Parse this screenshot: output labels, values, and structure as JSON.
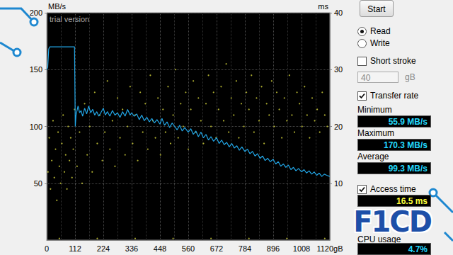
{
  "chart_data": {
    "type": "line",
    "y_label": "MB/s",
    "y2_label": "ms",
    "annotation": "trial version",
    "xlim": [
      0,
      1120
    ],
    "xticks": [
      0,
      112,
      224,
      336,
      448,
      560,
      672,
      784,
      896,
      1008,
      {
        "value": 1120,
        "label": "1120gB"
      }
    ],
    "ylim": [
      0,
      200
    ],
    "yticks": [
      50,
      100,
      150,
      200
    ],
    "y2lim": [
      0,
      40
    ],
    "y2ticks": [
      10,
      20,
      30,
      40
    ],
    "grid": true,
    "series": [
      {
        "type": "line",
        "color": "#22a6e6",
        "x": [
          0,
          4,
          8,
          12,
          30,
          60,
          90,
          110,
          113,
          116,
          124,
          130,
          136,
          142,
          150,
          158,
          166,
          174,
          182,
          190,
          198,
          206,
          214,
          224,
          232,
          240,
          250,
          260,
          270,
          280,
          290,
          300,
          310,
          320,
          330,
          336,
          346,
          356,
          366,
          376,
          386,
          396,
          406,
          416,
          426,
          436,
          448,
          456,
          466,
          476,
          486,
          496,
          506,
          516,
          526,
          536,
          546,
          560,
          570,
          580,
          590,
          600,
          610,
          620,
          630,
          640,
          650,
          660,
          672,
          682,
          692,
          702,
          712,
          722,
          732,
          742,
          752,
          762,
          772,
          784,
          794,
          804,
          814,
          824,
          834,
          844,
          854,
          864,
          874,
          884,
          896,
          906,
          916,
          926,
          936,
          946,
          956,
          966,
          976,
          986,
          996,
          1008,
          1018,
          1028,
          1038,
          1048,
          1058,
          1068,
          1078,
          1088,
          1098,
          1108,
          1120
        ],
        "values": [
          150,
          152,
          168,
          170,
          170,
          170,
          170,
          170,
          100,
          110,
          118,
          112,
          114,
          109,
          116,
          111,
          118,
          112,
          115,
          110,
          113,
          109,
          112,
          116,
          110,
          113,
          109,
          114,
          110,
          112,
          108,
          113,
          109,
          115,
          110,
          112,
          109,
          111,
          106,
          110,
          105,
          108,
          104,
          107,
          103,
          106,
          102,
          107,
          101,
          104,
          99,
          103,
          100,
          97,
          101,
          96,
          99,
          95,
          98,
          93,
          96,
          91,
          95,
          90,
          93,
          88,
          91,
          87,
          90,
          85,
          88,
          84,
          86,
          82,
          85,
          81,
          83,
          79,
          82,
          78,
          80,
          76,
          78,
          74,
          76,
          72,
          74,
          70,
          72,
          69,
          71,
          67,
          69,
          65,
          67,
          64,
          66,
          62,
          64,
          61,
          63,
          60,
          62,
          59,
          61,
          58,
          60,
          57,
          59,
          56,
          58,
          57,
          56
        ]
      },
      {
        "type": "scatter",
        "axis": "y2",
        "color": "#d8d83c",
        "marker": "dot",
        "x": [
          5,
          10,
          15,
          20,
          25,
          30,
          35,
          40,
          45,
          50,
          55,
          60,
          65,
          70,
          75,
          80,
          85,
          90,
          95,
          100,
          105,
          110,
          120,
          130,
          140,
          150,
          160,
          170,
          180,
          190,
          200,
          210,
          220,
          230,
          240,
          250,
          260,
          270,
          280,
          290,
          300,
          310,
          320,
          330,
          340,
          350,
          360,
          370,
          380,
          390,
          400,
          410,
          420,
          430,
          440,
          450,
          460,
          470,
          480,
          490,
          500,
          510,
          520,
          530,
          540,
          550,
          560,
          570,
          580,
          590,
          600,
          610,
          620,
          630,
          640,
          650,
          660,
          670,
          680,
          690,
          700,
          710,
          720,
          730,
          740,
          750,
          760,
          770,
          780,
          790,
          800,
          810,
          820,
          830,
          840,
          850,
          860,
          870,
          880,
          890,
          900,
          910,
          920,
          930,
          940,
          950,
          960,
          970,
          980,
          990,
          1000,
          1010,
          1020,
          1030,
          1040,
          1050,
          1060,
          1070,
          1080,
          1090,
          1100,
          1110,
          50,
          200,
          350,
          500,
          650,
          800,
          950,
          1100
        ],
        "values": [
          12,
          18,
          9,
          14,
          21,
          11,
          16,
          7,
          19,
          13,
          10,
          17,
          22,
          12,
          15,
          9,
          20,
          14,
          18,
          11,
          16,
          23,
          13,
          19,
          10,
          24,
          15,
          20,
          12,
          26,
          17,
          22,
          14,
          19,
          28,
          16,
          21,
          13,
          25,
          18,
          23,
          15,
          20,
          27,
          17,
          22,
          14,
          26,
          19,
          24,
          16,
          29,
          21,
          18,
          25,
          15,
          23,
          19,
          27,
          17,
          22,
          30,
          18,
          24,
          20,
          26,
          16,
          23,
          28,
          19,
          25,
          21,
          17,
          24,
          29,
          20,
          26,
          18,
          23,
          27,
          21,
          31,
          19,
          25,
          22,
          28,
          18,
          24,
          20,
          26,
          23,
          29,
          19,
          25,
          21,
          27,
          17,
          24,
          22,
          28,
          20,
          26,
          23,
          18,
          25,
          21,
          29,
          22,
          19,
          26,
          24,
          20,
          27,
          22,
          18,
          25,
          21,
          23,
          19,
          26,
          22,
          20,
          0.3,
          0.3,
          0.3,
          0.3,
          0.3,
          0.3,
          0.3,
          0.3
        ]
      }
    ]
  },
  "panel": {
    "start_button": "Start",
    "mode": [
      {
        "label": "Read",
        "selected": true
      },
      {
        "label": "Write",
        "selected": false
      }
    ],
    "short_stroke": {
      "label": "Short stroke",
      "checked": false,
      "value": "40",
      "unit": "gB"
    },
    "transfer_rate": {
      "label": "Transfer rate",
      "checked": true,
      "stats": [
        {
          "label": "Minimum",
          "value": "55.9 MB/s"
        },
        {
          "label": "Maximum",
          "value": "170.3 MB/s"
        },
        {
          "label": "Average",
          "value": "99.3 MB/s"
        }
      ]
    },
    "access_time": {
      "label": "Access time",
      "checked": true,
      "value": "16.5 ms"
    },
    "cpu_usage": {
      "label": "CPU usage",
      "value": "4.7%"
    },
    "logo": "F1CD"
  }
}
